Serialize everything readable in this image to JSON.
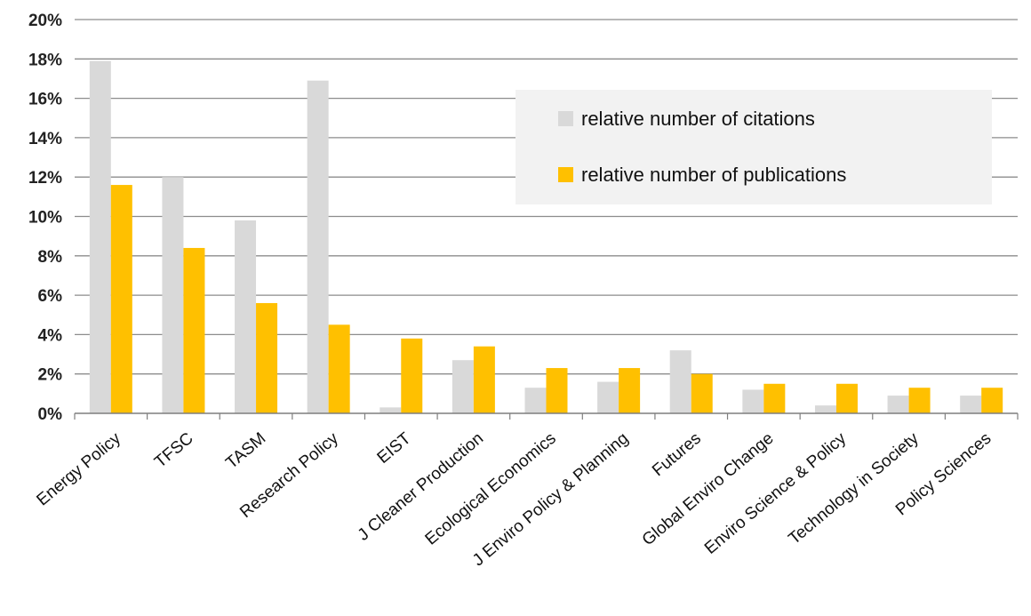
{
  "chart_data": {
    "type": "bar",
    "categories": [
      "Energy Policy",
      "TFSC",
      "TASM",
      "Research Policy",
      "EIST",
      "J Cleaner Production",
      "Ecological Economics",
      "J Enviro Policy & Planning",
      "Futures",
      "Global Enviro Change",
      "Enviro Science & Policy",
      "Technology in Society",
      "Policy Sciences"
    ],
    "series": [
      {
        "name": "relative number of citations",
        "color": "#d9d9d9",
        "values": [
          17.9,
          12.0,
          9.8,
          16.9,
          0.3,
          2.7,
          1.3,
          1.6,
          3.2,
          1.2,
          0.4,
          0.9,
          0.9
        ]
      },
      {
        "name": "relative number of publications",
        "color": "#ffc000",
        "values": [
          11.6,
          8.4,
          5.6,
          4.5,
          3.8,
          3.4,
          2.3,
          2.3,
          2.0,
          1.5,
          1.5,
          1.3,
          1.3
        ]
      }
    ],
    "yticks": [
      "0%",
      "2%",
      "4%",
      "6%",
      "8%",
      "10%",
      "12%",
      "14%",
      "16%",
      "18%",
      "20%"
    ],
    "ylim": [
      0,
      20
    ],
    "grid": true,
    "legend_position": "top-right",
    "title": "",
    "xlabel": "",
    "ylabel": ""
  }
}
